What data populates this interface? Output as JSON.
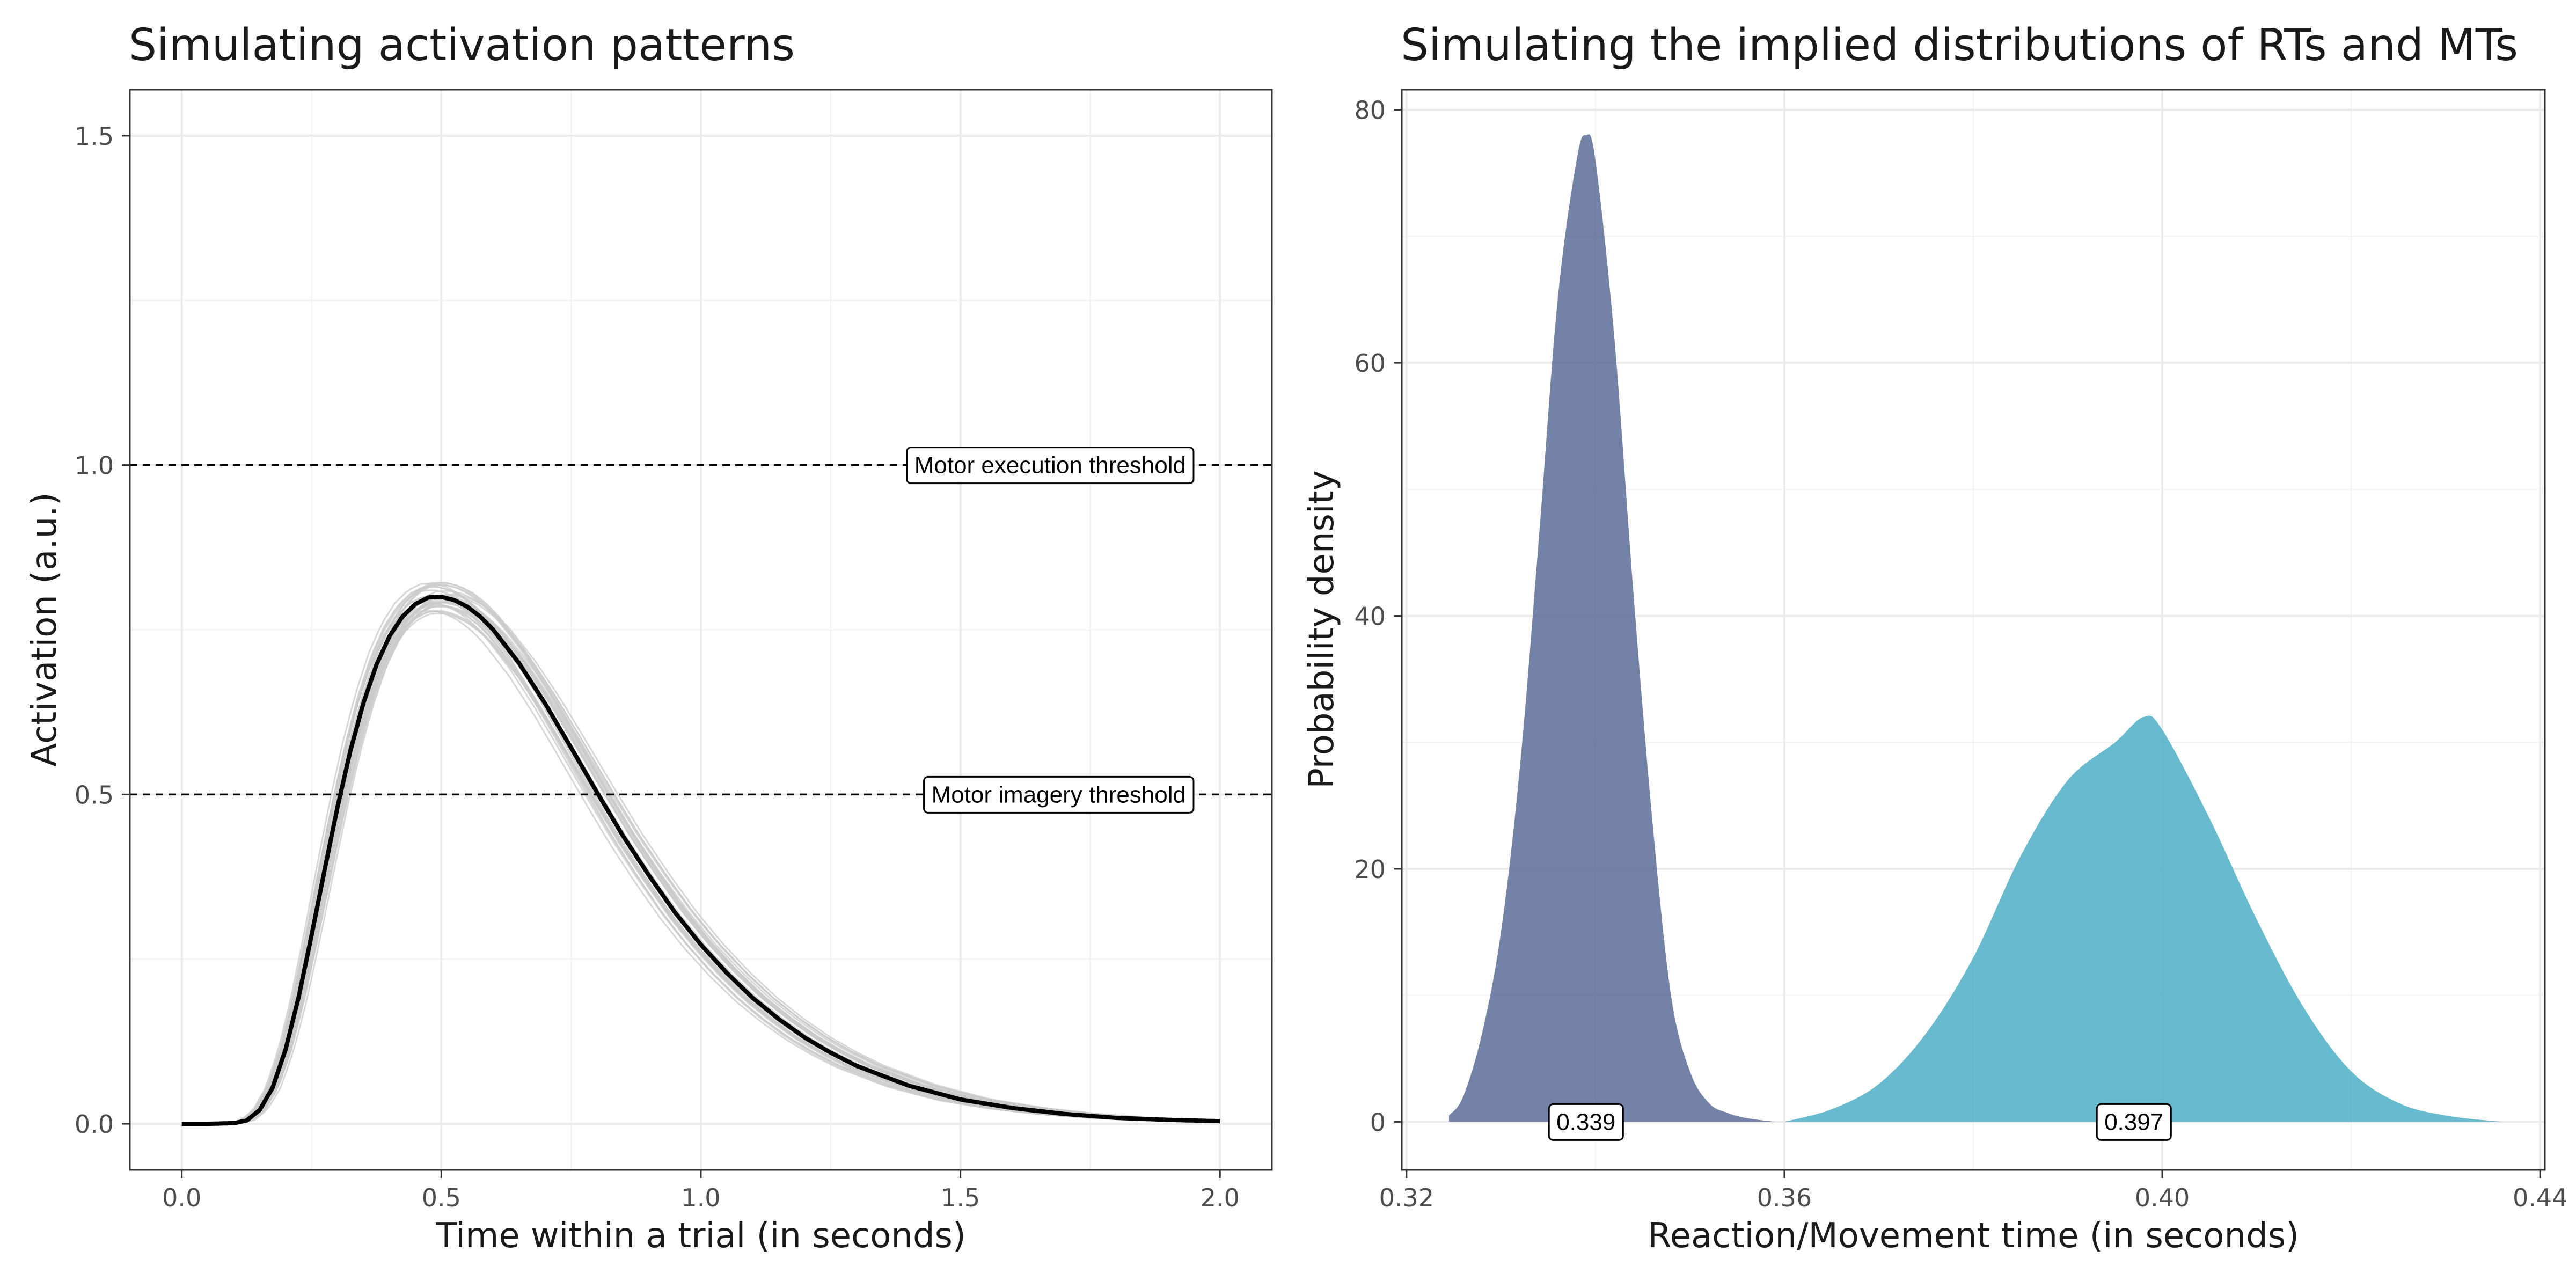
{
  "chart_data": [
    {
      "type": "line",
      "title": "Simulating activation patterns",
      "xlabel": "Time within a trial (in seconds)",
      "ylabel": "Activation (a.u.)",
      "xlim": [
        -0.1,
        2.1
      ],
      "ylim": [
        -0.07,
        1.57
      ],
      "x_ticks": [
        "0.0",
        "0.5",
        "1.0",
        "1.5",
        "2.0"
      ],
      "y_ticks": [
        "0.0",
        "0.5",
        "1.0",
        "1.5"
      ],
      "grid": true,
      "series": [
        {
          "style": "mean",
          "color": "#000000",
          "x": [
            0.0,
            0.05,
            0.1,
            0.125,
            0.15,
            0.175,
            0.2,
            0.225,
            0.25,
            0.275,
            0.3,
            0.325,
            0.35,
            0.375,
            0.4,
            0.425,
            0.45,
            0.475,
            0.5,
            0.525,
            0.55,
            0.575,
            0.6,
            0.65,
            0.7,
            0.75,
            0.8,
            0.85,
            0.9,
            0.95,
            1.0,
            1.05,
            1.1,
            1.15,
            1.2,
            1.25,
            1.3,
            1.4,
            1.5,
            1.6,
            1.7,
            1.8,
            1.9,
            2.0
          ],
          "values": [
            0.0,
            0.0,
            0.001,
            0.005,
            0.021,
            0.055,
            0.113,
            0.192,
            0.286,
            0.385,
            0.481,
            0.567,
            0.639,
            0.697,
            0.74,
            0.77,
            0.789,
            0.799,
            0.8,
            0.795,
            0.785,
            0.77,
            0.75,
            0.699,
            0.638,
            0.571,
            0.503,
            0.437,
            0.377,
            0.321,
            0.272,
            0.229,
            0.191,
            0.159,
            0.131,
            0.108,
            0.088,
            0.058,
            0.037,
            0.024,
            0.015,
            0.009,
            0.006,
            0.004
          ]
        }
      ],
      "simulated_traces": {
        "count": 30,
        "color": "#c9c9c9",
        "peak_jitter": 0.025,
        "time_jitter": 0.012
      },
      "thresholds": [
        {
          "value": 1.0,
          "label": "Motor execution threshold"
        },
        {
          "value": 0.5,
          "label": "Motor imagery threshold"
        }
      ]
    },
    {
      "type": "area",
      "title": "Simulating the implied distributions of RTs and MTs",
      "xlabel": "Reaction/Movement time (in seconds)",
      "ylabel": "Probability density",
      "xlim": [
        0.3195,
        0.4405
      ],
      "ylim": [
        -3.8,
        81.6
      ],
      "x_ticks": [
        "0.32",
        "0.36",
        "0.40",
        "0.44"
      ],
      "y_ticks": [
        "0",
        "20",
        "40",
        "60",
        "80"
      ],
      "grid": true,
      "series": [
        {
          "color": "#5b6c97",
          "x": [
            0.3245,
            0.326,
            0.328,
            0.33,
            0.332,
            0.334,
            0.336,
            0.338,
            0.339,
            0.34,
            0.342,
            0.344,
            0.346,
            0.348,
            0.35,
            0.352,
            0.354,
            0.356,
            0.359
          ],
          "values": [
            0.5,
            2,
            7,
            15,
            28,
            46,
            65,
            76,
            78,
            76,
            62,
            42,
            24,
            10,
            4,
            1.5,
            0.7,
            0.3,
            0
          ],
          "label": "0.339",
          "label_x": 0.339
        },
        {
          "color": "#4eaec6",
          "x": [
            0.36,
            0.365,
            0.37,
            0.375,
            0.38,
            0.385,
            0.39,
            0.395,
            0.398,
            0.4,
            0.405,
            0.41,
            0.415,
            0.42,
            0.425,
            0.43,
            0.436
          ],
          "values": [
            0,
            1,
            3,
            7,
            13,
            21,
            27,
            30,
            32,
            31,
            24,
            16,
            9,
            4,
            1.5,
            0.5,
            0
          ],
          "label": "0.397",
          "label_x": 0.397
        }
      ]
    }
  ]
}
